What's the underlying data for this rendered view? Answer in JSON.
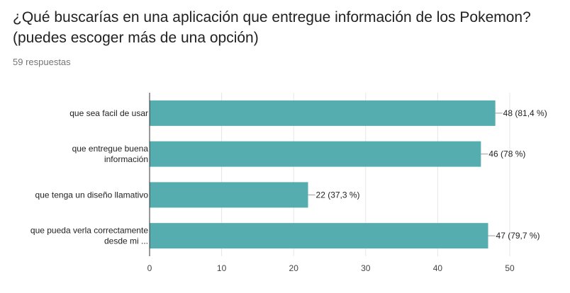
{
  "question": {
    "title": "¿Qué buscarías en una aplicación que entregue información de los Pokemon? (puedes escoger más de una opción)",
    "responses": "59 respuestas"
  },
  "colors": {
    "bar": "#56adb0",
    "grid": "#e6e6e6",
    "axis": "#333333"
  },
  "chart_data": {
    "type": "bar",
    "orientation": "horizontal",
    "categories": [
      [
        "que sea facil de usar"
      ],
      [
        "que entregue buena",
        "información"
      ],
      [
        "que tenga un diseño llamativo"
      ],
      [
        "que pueda verla correctamente",
        "desde mi ..."
      ]
    ],
    "values": [
      48,
      46,
      22,
      47
    ],
    "data_labels": [
      "48 (81,4 %)",
      "46 (78 %)",
      "22 (37,3 %)",
      "47 (79,7 %)"
    ],
    "xlim": [
      0,
      50
    ],
    "xticks": [
      0,
      10,
      20,
      30,
      40,
      50
    ],
    "grid": true,
    "legend": "none"
  }
}
